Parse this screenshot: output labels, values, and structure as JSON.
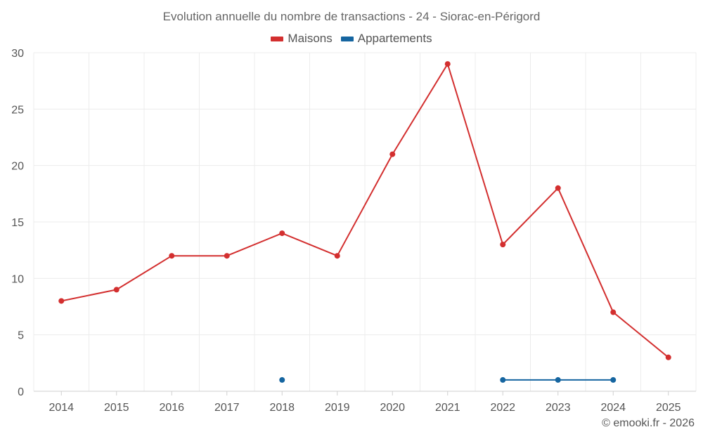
{
  "chart_data": {
    "type": "line",
    "title": "Evolution annuelle du nombre de transactions - 24 - Siorac-en-Périgord",
    "categories": [
      "2014",
      "2015",
      "2016",
      "2017",
      "2018",
      "2019",
      "2020",
      "2021",
      "2022",
      "2023",
      "2024",
      "2025"
    ],
    "ylim": [
      0,
      30
    ],
    "yticks": [
      0,
      5,
      10,
      15,
      20,
      25,
      30
    ],
    "grid": true,
    "legend_position": "top-center",
    "series": [
      {
        "name": "Maisons",
        "color": "#d32f2f",
        "values": [
          8,
          9,
          12,
          12,
          14,
          12,
          21,
          29,
          13,
          18,
          7,
          3
        ]
      },
      {
        "name": "Appartements",
        "color": "#1565a0",
        "values": [
          null,
          null,
          null,
          null,
          1,
          null,
          null,
          null,
          1,
          1,
          1,
          null
        ]
      }
    ]
  },
  "footer": {
    "credit": "© emooki.fr - 2026"
  }
}
